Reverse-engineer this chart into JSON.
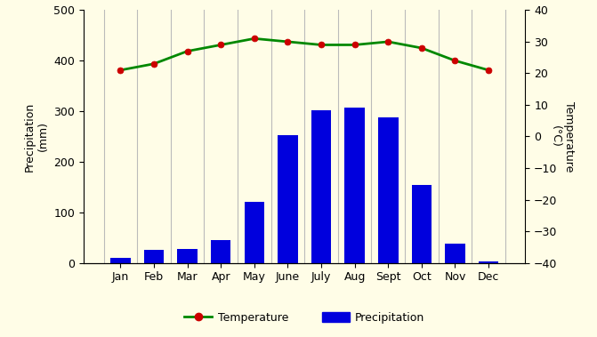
{
  "months": [
    "Jan",
    "Feb",
    "Mar",
    "Apr",
    "May",
    "June",
    "July",
    "Aug",
    "Sept",
    "Oct",
    "Nov",
    "Dec"
  ],
  "precipitation": [
    10,
    25,
    27,
    45,
    120,
    253,
    302,
    307,
    288,
    155,
    38,
    2
  ],
  "temperature": [
    21,
    23,
    27,
    29,
    31,
    30,
    29,
    29,
    30,
    28,
    24,
    21
  ],
  "bar_color": "#0000dd",
  "line_color": "#008800",
  "marker_color": "#cc0000",
  "background_color": "#fffde7",
  "ylabel_left": "Precipitation\n(mm)",
  "ylabel_right": "Temperature\n(°C)",
  "ylim_left": [
    0,
    500
  ],
  "ylim_right": [
    -40,
    40
  ],
  "yticks_left": [
    0,
    100,
    200,
    300,
    400,
    500
  ],
  "yticks_right": [
    -40,
    -30,
    -20,
    -10,
    0,
    10,
    20,
    30,
    40
  ],
  "legend_temp": "Temperature",
  "legend_precip": "Precipitation",
  "figsize": [
    6.71,
    3.79
  ],
  "dpi": 100
}
